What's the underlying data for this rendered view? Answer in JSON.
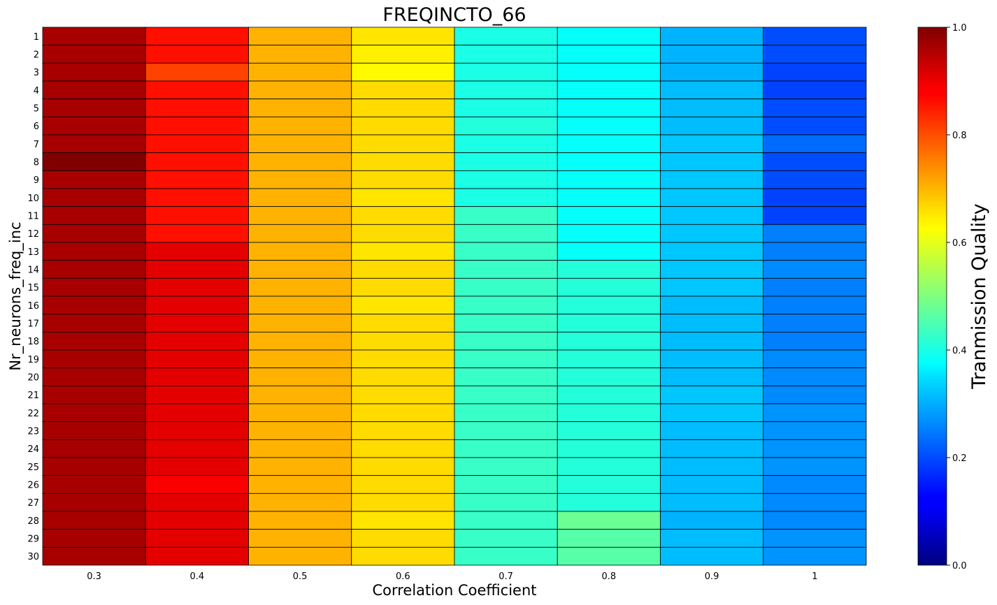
{
  "chart_data": {
    "type": "heatmap",
    "title": "FREQINCTO_66",
    "xlabel": "Correlation Coefficient",
    "ylabel": "Nr_neurons_freq_inc",
    "colorbar_label": "Tranmission Quality",
    "colormap": "jet",
    "vmin": 0.0,
    "vmax": 1.0,
    "colorbar_ticks": [
      "0.0",
      "0.2",
      "0.4",
      "0.6",
      "0.8",
      "1.0"
    ],
    "x_categories": [
      "0.3",
      "0.4",
      "0.5",
      "0.6",
      "0.7",
      "0.8",
      "0.9",
      "1"
    ],
    "y_categories": [
      "1",
      "2",
      "3",
      "4",
      "5",
      "6",
      "7",
      "8",
      "9",
      "10",
      "11",
      "12",
      "13",
      "14",
      "15",
      "16",
      "17",
      "18",
      "19",
      "20",
      "21",
      "22",
      "23",
      "24",
      "25",
      "26",
      "27",
      "28",
      "29",
      "30"
    ],
    "values": [
      [
        0.96,
        0.86,
        0.7,
        0.65,
        0.4,
        0.38,
        0.3,
        0.2
      ],
      [
        0.96,
        0.86,
        0.7,
        0.64,
        0.4,
        0.38,
        0.3,
        0.2
      ],
      [
        0.96,
        0.81,
        0.7,
        0.63,
        0.4,
        0.38,
        0.3,
        0.19
      ],
      [
        0.96,
        0.86,
        0.7,
        0.66,
        0.4,
        0.38,
        0.31,
        0.19
      ],
      [
        0.96,
        0.86,
        0.7,
        0.66,
        0.4,
        0.38,
        0.31,
        0.2
      ],
      [
        0.96,
        0.86,
        0.7,
        0.66,
        0.41,
        0.38,
        0.31,
        0.2
      ],
      [
        0.96,
        0.86,
        0.7,
        0.66,
        0.4,
        0.38,
        0.32,
        0.23
      ],
      [
        1.0,
        0.86,
        0.7,
        0.66,
        0.4,
        0.38,
        0.32,
        0.2
      ],
      [
        0.96,
        0.86,
        0.7,
        0.66,
        0.4,
        0.38,
        0.32,
        0.2
      ],
      [
        0.96,
        0.86,
        0.7,
        0.65,
        0.4,
        0.38,
        0.32,
        0.19
      ],
      [
        0.96,
        0.86,
        0.7,
        0.66,
        0.43,
        0.38,
        0.32,
        0.19
      ],
      [
        0.96,
        0.86,
        0.7,
        0.66,
        0.43,
        0.38,
        0.32,
        0.25
      ],
      [
        0.96,
        0.9,
        0.7,
        0.65,
        0.43,
        0.38,
        0.32,
        0.25
      ],
      [
        0.96,
        0.9,
        0.7,
        0.66,
        0.43,
        0.41,
        0.32,
        0.26
      ],
      [
        0.96,
        0.9,
        0.7,
        0.66,
        0.43,
        0.41,
        0.32,
        0.25
      ],
      [
        0.96,
        0.9,
        0.7,
        0.65,
        0.43,
        0.41,
        0.31,
        0.25
      ],
      [
        0.96,
        0.9,
        0.7,
        0.66,
        0.43,
        0.41,
        0.31,
        0.25
      ],
      [
        0.96,
        0.9,
        0.7,
        0.66,
        0.43,
        0.41,
        0.31,
        0.25
      ],
      [
        0.96,
        0.9,
        0.7,
        0.66,
        0.43,
        0.41,
        0.31,
        0.26
      ],
      [
        0.96,
        0.9,
        0.7,
        0.66,
        0.43,
        0.41,
        0.31,
        0.26
      ],
      [
        0.96,
        0.9,
        0.7,
        0.66,
        0.43,
        0.41,
        0.32,
        0.26
      ],
      [
        0.96,
        0.9,
        0.7,
        0.66,
        0.43,
        0.41,
        0.32,
        0.27
      ],
      [
        0.96,
        0.9,
        0.7,
        0.66,
        0.43,
        0.41,
        0.31,
        0.27
      ],
      [
        0.96,
        0.9,
        0.7,
        0.66,
        0.43,
        0.41,
        0.31,
        0.27
      ],
      [
        0.96,
        0.9,
        0.7,
        0.66,
        0.43,
        0.41,
        0.31,
        0.27
      ],
      [
        0.96,
        0.88,
        0.7,
        0.66,
        0.43,
        0.41,
        0.31,
        0.26
      ],
      [
        0.96,
        0.9,
        0.7,
        0.66,
        0.43,
        0.41,
        0.31,
        0.26
      ],
      [
        0.96,
        0.9,
        0.7,
        0.65,
        0.43,
        0.48,
        0.3,
        0.26
      ],
      [
        0.96,
        0.9,
        0.7,
        0.66,
        0.43,
        0.46,
        0.31,
        0.27
      ],
      [
        0.96,
        0.9,
        0.7,
        0.66,
        0.43,
        0.46,
        0.31,
        0.27
      ]
    ],
    "cell_edgecolor": "#000000"
  }
}
